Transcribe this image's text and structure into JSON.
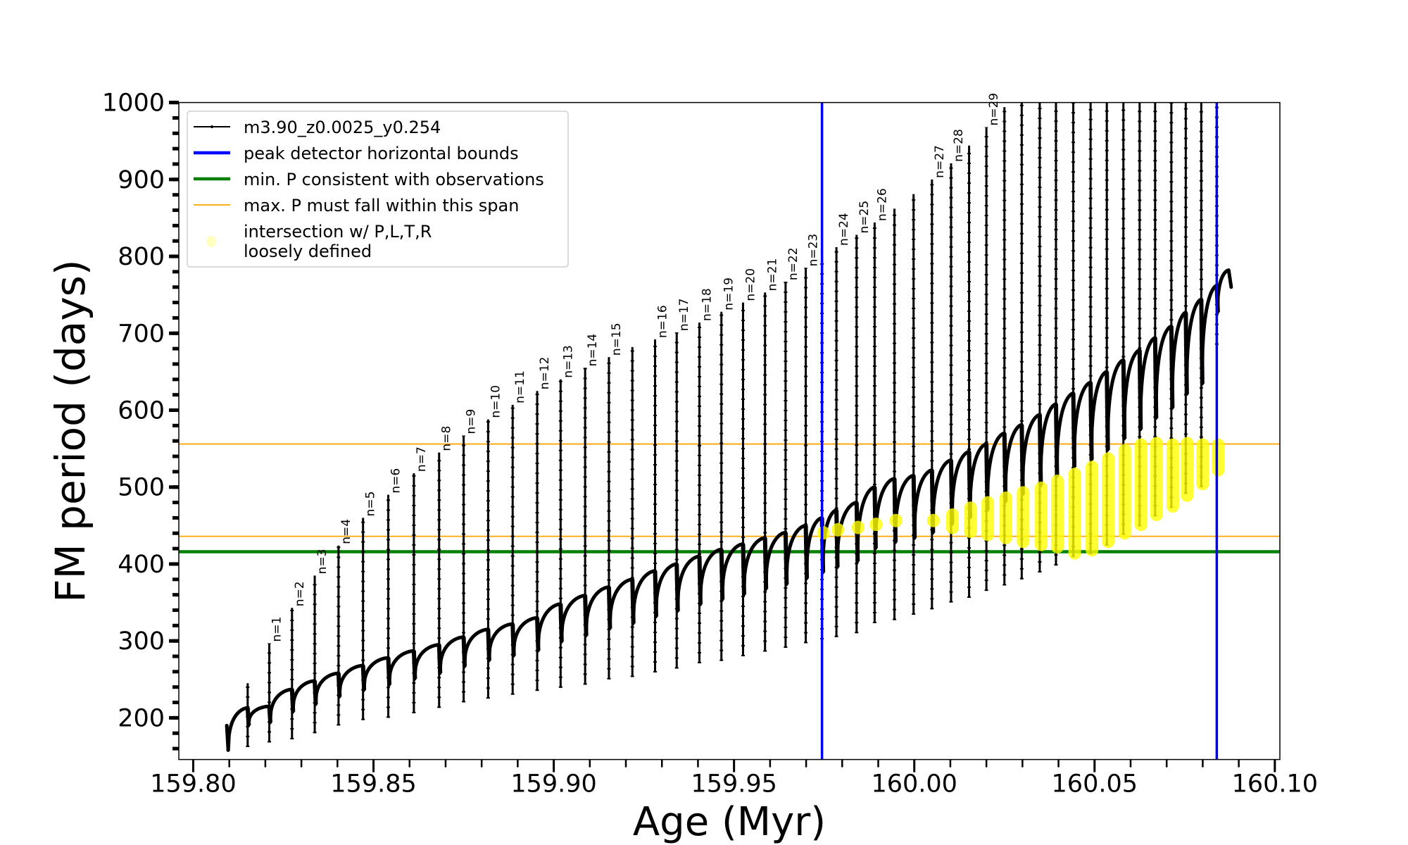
{
  "chart_data": {
    "type": "line",
    "xlabel": "Age (Myr)",
    "ylabel": "FM period (days)",
    "xlim": [
      159.796,
      160.1014
    ],
    "ylim": [
      145.8,
      1000
    ],
    "xticks": [
      159.8,
      159.85,
      159.9,
      159.95,
      160.0,
      160.05,
      160.1
    ],
    "xtick_labels": [
      "159.80",
      "159.85",
      "159.90",
      "159.95",
      "160.00",
      "160.05",
      "160.10"
    ],
    "x_minor_step": 0.01,
    "yticks": [
      200,
      300,
      400,
      500,
      600,
      700,
      800,
      900,
      1000
    ],
    "ytick_labels": [
      "200",
      "300",
      "400",
      "500",
      "600",
      "700",
      "800",
      "900",
      "1000"
    ],
    "y_minor_step": 20,
    "grid": false,
    "legend_placement": "top-left",
    "legend": [
      {
        "label": "m3.90_z0.0025_y0.254",
        "kind": "line-marker",
        "color": "#000000"
      },
      {
        "label": "peak detector horizontal bounds",
        "kind": "line",
        "color": "#0000ff"
      },
      {
        "label": "min. P consistent with observations",
        "kind": "line",
        "color": "#008000"
      },
      {
        "label": "max. P must fall within this span",
        "kind": "thin-line",
        "color": "#ffa500"
      },
      {
        "label": "intersection w/ P,L,T,R",
        "label2": "loosely defined",
        "kind": "marker",
        "color": "#ffff00"
      }
    ],
    "series": {
      "name": "m3.90_z0.0025_y0.254",
      "color": "#000000",
      "start": {
        "age": 159.8093,
        "period": 190,
        "min_period": 158
      },
      "cycle_fields": [
        "age",
        "plateau_period",
        "min_period",
        "max_period",
        "label"
      ],
      "cycles": [
        [
          159.8151,
          213,
          162,
          245,
          ""
        ],
        [
          159.8211,
          215,
          168,
          297,
          "n=1"
        ],
        [
          159.8274,
          237,
          172,
          343,
          "n=2"
        ],
        [
          159.8337,
          248,
          180,
          385,
          "n=3"
        ],
        [
          159.8403,
          258,
          190,
          424,
          "n=4"
        ],
        [
          159.8471,
          268,
          197,
          460,
          "n=5"
        ],
        [
          159.8541,
          278,
          200,
          490,
          "n=6"
        ],
        [
          159.8612,
          287,
          206,
          518,
          "n=7"
        ],
        [
          159.8682,
          295,
          213,
          545,
          "n=8"
        ],
        [
          159.875,
          305,
          220,
          567,
          "n=9"
        ],
        [
          159.8818,
          315,
          225,
          588,
          "n=10"
        ],
        [
          159.8886,
          322,
          230,
          607,
          "n=11"
        ],
        [
          159.8954,
          330,
          235,
          625,
          "n=12"
        ],
        [
          159.9019,
          348,
          239,
          640,
          "n=13"
        ],
        [
          159.9087,
          359,
          243,
          655,
          "n=14"
        ],
        [
          159.9153,
          370,
          250,
          669,
          "n=15"
        ],
        [
          159.9218,
          380,
          253,
          682,
          ""
        ],
        [
          159.9281,
          391,
          259,
          692,
          "n=16"
        ],
        [
          159.9341,
          400,
          264,
          701,
          "n=17"
        ],
        [
          159.9404,
          410,
          271,
          714,
          "n=18"
        ],
        [
          159.9465,
          419,
          274,
          728,
          "n=19"
        ],
        [
          159.9525,
          426,
          280,
          740,
          "n=20"
        ],
        [
          159.9586,
          434,
          286,
          753,
          "n=21"
        ],
        [
          159.9643,
          441,
          291,
          767,
          "n=22"
        ],
        [
          159.9699,
          450,
          297,
          785,
          "n=23"
        ],
        [
          159.9744,
          460,
          302,
          798,
          ""
        ],
        [
          159.9784,
          470,
          305,
          812,
          "n=24"
        ],
        [
          159.984,
          480,
          310,
          828,
          "n=25"
        ],
        [
          159.989,
          500,
          323,
          844,
          "n=26"
        ],
        [
          159.9945,
          511,
          327,
          862,
          ""
        ],
        [
          159.9998,
          515,
          334,
          881,
          ""
        ],
        [
          160.0049,
          522,
          341,
          900,
          "n=27"
        ],
        [
          160.0102,
          535,
          350,
          921,
          "n=28"
        ],
        [
          160.0152,
          546,
          356,
          944,
          ""
        ],
        [
          160.02,
          556,
          365,
          968,
          "n=29"
        ],
        [
          160.025,
          570,
          372,
          994,
          ""
        ],
        [
          160.0298,
          581,
          380,
          1000,
          ""
        ],
        [
          160.0348,
          594,
          389,
          1000,
          ""
        ],
        [
          160.0393,
          608,
          398,
          1000,
          ""
        ],
        [
          160.0441,
          622,
          409,
          1000,
          ""
        ],
        [
          160.0489,
          636,
          413,
          1000,
          ""
        ],
        [
          160.0534,
          650,
          424,
          1000,
          ""
        ],
        [
          160.058,
          665,
          438,
          1000,
          ""
        ],
        [
          160.0625,
          678,
          449,
          1000,
          ""
        ],
        [
          160.0668,
          694,
          462,
          1000,
          ""
        ],
        [
          160.0713,
          709,
          473,
          1000,
          ""
        ],
        [
          160.0753,
          727,
          491,
          1000,
          ""
        ],
        [
          160.0796,
          744,
          500,
          1000,
          ""
        ],
        [
          160.0839,
          762,
          685,
          1000,
          ""
        ]
      ],
      "end": [
        [
          160.0872,
          782
        ],
        [
          160.0879,
          760
        ]
      ]
    },
    "vertical_lines": {
      "label": "peak detector horizontal bounds",
      "color": "#0000ff",
      "x": [
        159.9744,
        160.0839
      ]
    },
    "min_period_line": {
      "label": "min. P consistent with observations",
      "color": "#008000",
      "y": 416
    },
    "max_period_span": {
      "label": "max. P must fall within this span",
      "color": "#ffa500",
      "y": [
        436,
        556
      ]
    },
    "intersections": {
      "label": "intersection w/ P,L,T,R loosely defined",
      "color": "#ffff00",
      "fields": [
        "age",
        "min_period",
        "max_period"
      ],
      "points": [
        [
          159.9744,
          440,
          441
        ],
        [
          159.9784,
          444,
          445
        ],
        [
          159.984,
          447,
          448
        ],
        [
          159.989,
          451,
          452
        ],
        [
          159.9945,
          456,
          457
        ],
        [
          160.0049,
          456,
          457
        ],
        [
          160.0102,
          447,
          464
        ],
        [
          160.0152,
          442,
          473
        ],
        [
          160.02,
          438,
          480
        ],
        [
          160.025,
          434,
          486
        ],
        [
          160.0298,
          429,
          493
        ],
        [
          160.0348,
          425,
          499
        ],
        [
          160.0393,
          422,
          508
        ],
        [
          160.0441,
          414,
          517
        ],
        [
          160.0489,
          418,
          526
        ],
        [
          160.0534,
          429,
          537
        ],
        [
          160.058,
          440,
          548
        ],
        [
          160.0625,
          451,
          555
        ],
        [
          160.0668,
          464,
          557
        ],
        [
          160.0713,
          475,
          555
        ],
        [
          160.0753,
          489,
          557
        ],
        [
          160.0796,
          504,
          555
        ],
        [
          160.0839,
          522,
          555
        ]
      ]
    }
  }
}
